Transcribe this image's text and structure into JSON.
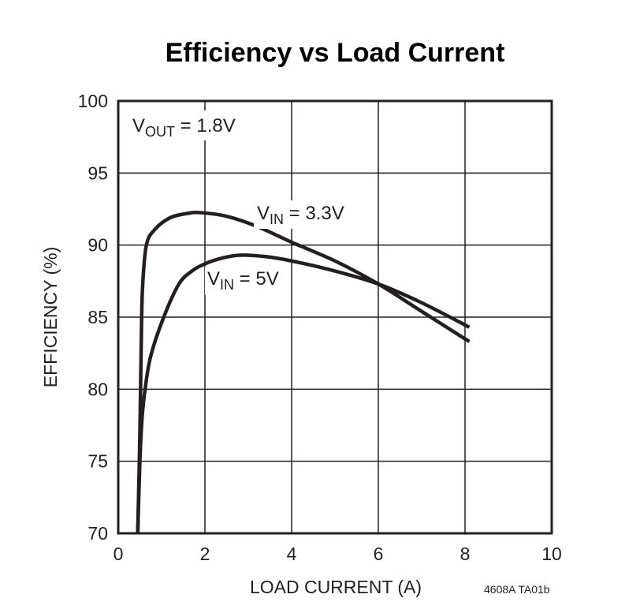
{
  "chart_data": {
    "type": "line",
    "title": "Efficiency vs Load Current",
    "xlabel": "LOAD CURRENT (A)",
    "ylabel": "EFFICIENCY (%)",
    "xlim": [
      0,
      10
    ],
    "ylim": [
      70,
      100
    ],
    "xticks": [
      "0",
      "2",
      "4",
      "6",
      "8",
      "10"
    ],
    "yticks": [
      "70",
      "75",
      "80",
      "85",
      "90",
      "95",
      "100"
    ],
    "grid": true,
    "line_color": "#231f20",
    "annotations": {
      "vout": {
        "main": "V",
        "sub": "OUT",
        "rest": " = 1.8V"
      },
      "vin33": {
        "main": "V",
        "sub": "IN",
        "rest": " = 3.3V"
      },
      "vin5": {
        "main": "V",
        "sub": "IN",
        "rest": " = 5V"
      }
    },
    "figure_code": "4608A TA01b",
    "series": [
      {
        "name": "VIN = 3.3V",
        "x": [
          0.45,
          0.5,
          0.53,
          0.56,
          0.65,
          0.85,
          1.2,
          1.6,
          1.9,
          2.5,
          3.2,
          4.0,
          5.0,
          6.0,
          7.0,
          8.1
        ],
        "y": [
          70,
          77,
          83,
          87,
          90,
          91.1,
          91.9,
          92.2,
          92.25,
          92.0,
          91.3,
          90.2,
          88.9,
          87.3,
          85.4,
          83.3
        ]
      },
      {
        "name": "VIN = 5V",
        "x": [
          0.45,
          0.5,
          0.55,
          0.62,
          0.75,
          1.05,
          1.4,
          1.7,
          2.0,
          2.4,
          2.8,
          3.4,
          4.0,
          5.0,
          6.0,
          7.0,
          8.1
        ],
        "y": [
          70,
          75,
          78,
          80,
          82.3,
          85,
          87.3,
          88.2,
          88.7,
          89.1,
          89.3,
          89.2,
          88.9,
          88.2,
          87.3,
          86.0,
          84.3
        ]
      }
    ]
  }
}
